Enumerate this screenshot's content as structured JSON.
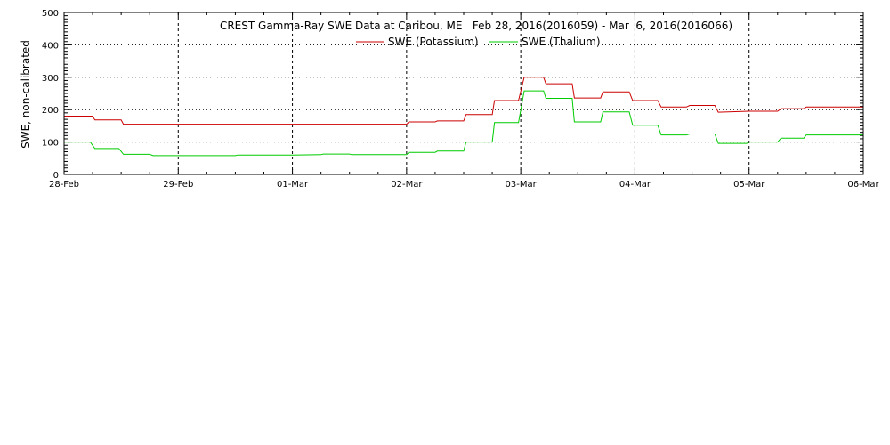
{
  "chart_data": {
    "type": "line",
    "title": "CREST Gamma-Ray SWE Data at Caribou, ME   Feb 28, 2016(2016059) - Mar  6, 2016(2016066)",
    "ylabel": "SWE, non-calibrated",
    "xlabel": "",
    "ylim": [
      0,
      500
    ],
    "yticks": [
      "0",
      "100",
      "200",
      "300",
      "400",
      "500"
    ],
    "xlim": [
      0,
      7
    ],
    "xticks": [
      "28-Feb",
      "29-Feb",
      "01-Mar",
      "02-Mar",
      "03-Mar",
      "04-Mar",
      "05-Mar",
      "06-Mar"
    ],
    "grid": true,
    "legend": "top-center",
    "series": [
      {
        "name": "SWE (Potassium)",
        "color": "#cc0000",
        "points": [
          [
            0.0,
            180
          ],
          [
            0.25,
            180
          ],
          [
            0.27,
            168
          ],
          [
            0.5,
            168
          ],
          [
            0.52,
            155
          ],
          [
            2.0,
            155
          ],
          [
            3.0,
            155
          ],
          [
            3.02,
            162
          ],
          [
            3.25,
            162
          ],
          [
            3.27,
            165
          ],
          [
            3.5,
            165
          ],
          [
            3.52,
            185
          ],
          [
            3.75,
            185
          ],
          [
            3.77,
            228
          ],
          [
            3.98,
            228
          ],
          [
            4.03,
            300
          ],
          [
            4.2,
            300
          ],
          [
            4.22,
            280
          ],
          [
            4.45,
            280
          ],
          [
            4.47,
            236
          ],
          [
            4.7,
            236
          ],
          [
            4.72,
            255
          ],
          [
            4.95,
            255
          ],
          [
            4.98,
            228
          ],
          [
            5.2,
            228
          ],
          [
            5.23,
            208
          ],
          [
            5.45,
            208
          ],
          [
            5.48,
            213
          ],
          [
            5.7,
            213
          ],
          [
            5.73,
            192
          ],
          [
            6.0,
            195
          ],
          [
            6.25,
            195
          ],
          [
            6.28,
            203
          ],
          [
            6.48,
            203
          ],
          [
            6.5,
            208
          ],
          [
            7.0,
            208
          ]
        ]
      },
      {
        "name": "SWE (Thalium)",
        "color": "#00cc00",
        "points": [
          [
            0.0,
            100
          ],
          [
            0.23,
            100
          ],
          [
            0.27,
            80
          ],
          [
            0.48,
            80
          ],
          [
            0.52,
            62
          ],
          [
            0.75,
            62
          ],
          [
            0.78,
            58
          ],
          [
            1.5,
            58
          ],
          [
            1.52,
            60
          ],
          [
            2.0,
            60
          ],
          [
            2.25,
            61
          ],
          [
            2.27,
            63
          ],
          [
            2.5,
            63
          ],
          [
            2.52,
            61
          ],
          [
            3.0,
            61
          ],
          [
            3.02,
            68
          ],
          [
            3.25,
            68
          ],
          [
            3.27,
            72
          ],
          [
            3.5,
            72
          ],
          [
            3.52,
            100
          ],
          [
            3.75,
            100
          ],
          [
            3.77,
            160
          ],
          [
            3.98,
            160
          ],
          [
            4.03,
            258
          ],
          [
            4.2,
            258
          ],
          [
            4.22,
            235
          ],
          [
            4.45,
            235
          ],
          [
            4.47,
            162
          ],
          [
            4.7,
            162
          ],
          [
            4.72,
            193
          ],
          [
            4.95,
            193
          ],
          [
            4.98,
            152
          ],
          [
            5.2,
            152
          ],
          [
            5.23,
            122
          ],
          [
            5.45,
            122
          ],
          [
            5.48,
            125
          ],
          [
            5.7,
            125
          ],
          [
            5.73,
            96
          ],
          [
            5.98,
            96
          ],
          [
            6.0,
            100
          ],
          [
            6.25,
            100
          ],
          [
            6.28,
            112
          ],
          [
            6.48,
            112
          ],
          [
            6.5,
            122
          ],
          [
            7.0,
            122
          ]
        ]
      }
    ]
  }
}
